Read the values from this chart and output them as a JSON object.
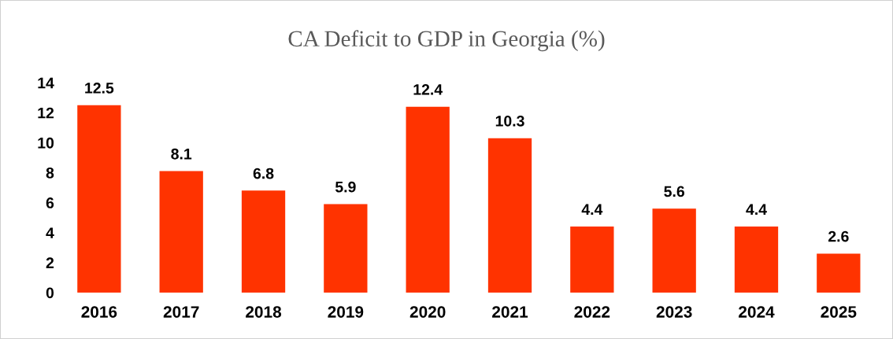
{
  "chart_data": {
    "type": "bar",
    "title": "CA Deficit to GDP in Georgia (%)",
    "categories": [
      "2016",
      "2017",
      "2018",
      "2019",
      "2020",
      "2021",
      "2022",
      "2023",
      "2024",
      "2025"
    ],
    "values": [
      12.5,
      8.1,
      6.8,
      5.9,
      12.4,
      10.3,
      4.4,
      5.6,
      4.4,
      2.6
    ],
    "color": "#ff3300",
    "ylim": [
      0,
      14
    ],
    "yticks": [
      0,
      2,
      4,
      6,
      8,
      10,
      12,
      14
    ],
    "grid": false,
    "data_labels": true
  }
}
